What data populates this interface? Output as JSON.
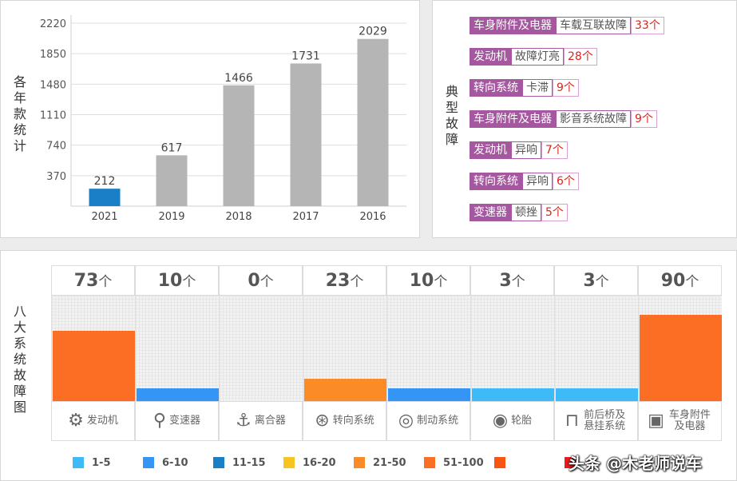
{
  "chart_data": [
    {
      "type": "bar",
      "ylabel": "各年款统计",
      "categories": [
        "2021",
        "2019",
        "2018",
        "2017",
        "2016"
      ],
      "values": [
        212,
        617,
        1466,
        1731,
        2029
      ],
      "bar_colors": [
        "#1a7fc6",
        "#b5b5b5",
        "#b5b5b5",
        "#b5b5b5",
        "#b5b5b5"
      ],
      "yticks": [
        370,
        740,
        1110,
        1480,
        1850,
        2220
      ],
      "ylim": [
        0,
        2220
      ],
      "grid": true
    },
    {
      "type": "bar",
      "ylabel": "八大系统故障图",
      "unit": "个",
      "categories": [
        "发动机",
        "变速器",
        "离合器",
        "转向系统",
        "制动系统",
        "轮胎",
        "前后桥及悬挂系统",
        "车身附件及电器"
      ],
      "values": [
        73,
        10,
        0,
        23,
        10,
        3,
        3,
        90
      ],
      "bar_colors": [
        "#fb6e24",
        "#3595f4",
        "#3595f4",
        "#fb8b26",
        "#3595f4",
        "#3ebaf7",
        "#3ebaf7",
        "#fb6e24"
      ],
      "icons": [
        "engine-icon",
        "gear-shift-icon",
        "clutch-pedal-icon",
        "steering-wheel-icon",
        "brake-disc-icon",
        "tire-icon",
        "suspension-icon",
        "battery-icon"
      ],
      "legend": [
        {
          "label": "1-5",
          "color": "#3ebaf7"
        },
        {
          "label": "6-10",
          "color": "#3595f4"
        },
        {
          "label": "11-15",
          "color": "#1a7fc6"
        },
        {
          "label": "16-20",
          "color": "#f8c520"
        },
        {
          "label": "21-50",
          "color": "#fb8b26"
        },
        {
          "label": "51-100",
          "color": "#fb6e24"
        },
        {
          "label": "",
          "color": "#fa5412"
        },
        {
          "label": "",
          "color": "#e8191f"
        }
      ],
      "legend_position": "bottom"
    }
  ],
  "faults": {
    "title": "典型故障",
    "items": [
      {
        "system": "车身附件及电器",
        "desc": "车载互联故障",
        "count": "33个"
      },
      {
        "system": "发动机",
        "desc": "故障灯亮",
        "count": "28个"
      },
      {
        "system": "转向系统",
        "desc": "卡滞",
        "count": "9个"
      },
      {
        "system": "车身附件及电器",
        "desc": "影音系统故障",
        "count": "9个"
      },
      {
        "system": "发动机",
        "desc": "异响",
        "count": "7个"
      },
      {
        "system": "转向系统",
        "desc": "异响",
        "count": "6个"
      },
      {
        "system": "变速器",
        "desc": "顿挫",
        "count": "5个"
      }
    ]
  },
  "watermark": "头条 @木老师说车"
}
